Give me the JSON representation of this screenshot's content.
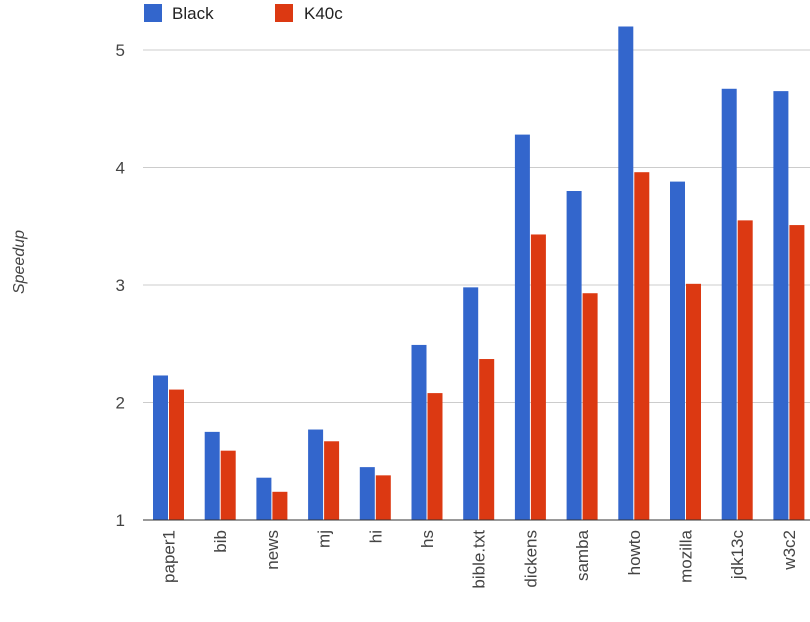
{
  "chart_data": {
    "type": "bar",
    "ylabel": "Speedup",
    "xlabel": "",
    "title": "",
    "ylim": [
      1,
      5.5
    ],
    "yticks": [
      1,
      2,
      3,
      4,
      5
    ],
    "grid": true,
    "legend_position": "top-left",
    "categories": [
      "paper1",
      "bib",
      "news",
      "mj",
      "hi",
      "hs",
      "bible.txt",
      "dickens",
      "samba",
      "howto",
      "mozilla",
      "jdk13c",
      "w3c2"
    ],
    "series": [
      {
        "name": "Black",
        "color": "#3366cc",
        "values": [
          2.23,
          1.75,
          1.36,
          1.77,
          1.45,
          2.49,
          2.98,
          4.28,
          3.8,
          5.2,
          3.88,
          4.67,
          4.65
        ]
      },
      {
        "name": "K40c",
        "color": "#dc3912",
        "values": [
          2.11,
          1.59,
          1.24,
          1.67,
          1.38,
          2.08,
          2.37,
          3.43,
          2.93,
          3.96,
          3.01,
          3.55,
          3.51
        ]
      }
    ]
  }
}
